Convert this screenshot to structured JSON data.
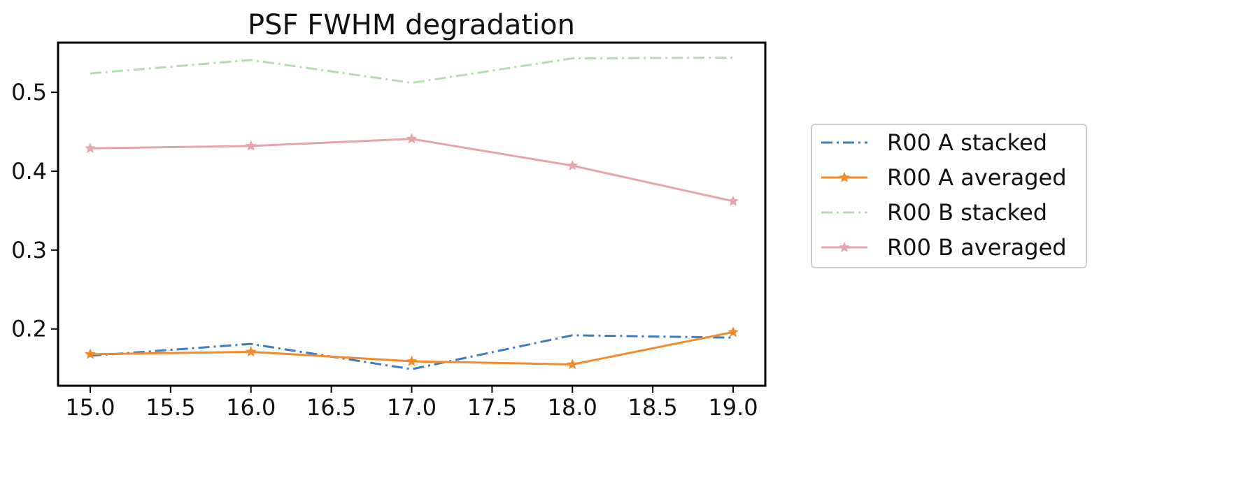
{
  "chart_data": {
    "type": "line",
    "title": "PSF FWHM degradation",
    "xlabel": "",
    "ylabel": "",
    "xlim": [
      14.8,
      19.2
    ],
    "ylim": [
      0.128,
      0.563
    ],
    "x_ticks": [
      15.0,
      15.5,
      16.0,
      16.5,
      17.0,
      17.5,
      18.0,
      18.5,
      19.0
    ],
    "x_tick_labels": [
      "15.0",
      "15.5",
      "16.0",
      "16.5",
      "17.0",
      "17.5",
      "18.0",
      "18.5",
      "19.0"
    ],
    "y_ticks": [
      0.2,
      0.3,
      0.4,
      0.5
    ],
    "y_tick_labels": [
      "0.2",
      "0.3",
      "0.4",
      "0.5"
    ],
    "x": [
      15,
      16,
      17,
      18,
      19
    ],
    "grid": false,
    "legend_position": "outside-right",
    "series": [
      {
        "name": "R00 A stacked",
        "values": [
          0.166,
          0.181,
          0.149,
          0.192,
          0.189
        ],
        "color": "#3b7dbf",
        "dash": "dashdot",
        "marker": "none",
        "alpha": 1.0
      },
      {
        "name": "R00 A averaged",
        "values": [
          0.168,
          0.171,
          0.159,
          0.155,
          0.196
        ],
        "color": "#f28a2e",
        "dash": "solid",
        "marker": "star",
        "alpha": 1.0
      },
      {
        "name": "R00 B stacked",
        "values": [
          0.524,
          0.541,
          0.512,
          0.543,
          0.544
        ],
        "color": "#b4dcb0",
        "dash": "dashdot",
        "marker": "none",
        "alpha": 1.0
      },
      {
        "name": "R00 B averaged",
        "values": [
          0.429,
          0.432,
          0.441,
          0.407,
          0.362
        ],
        "color": "#e5a5ab",
        "dash": "solid",
        "marker": "star",
        "alpha": 1.0
      }
    ]
  }
}
